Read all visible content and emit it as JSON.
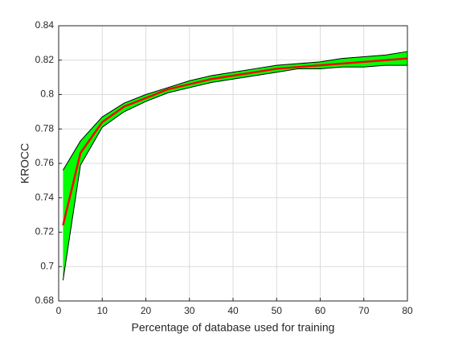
{
  "chart_data": {
    "type": "line",
    "x_label": "Percentage of database used for training",
    "y_label": "KROCC",
    "x": [
      1,
      5,
      10,
      15,
      20,
      25,
      30,
      35,
      40,
      45,
      50,
      55,
      60,
      65,
      70,
      75,
      80
    ],
    "series": [
      {
        "color": "#ff0000",
        "values": [
          0.724,
          0.766,
          0.784,
          0.793,
          0.798,
          0.803,
          0.806,
          0.809,
          0.811,
          0.813,
          0.815,
          0.816,
          0.817,
          0.818,
          0.819,
          0.82,
          0.821
        ],
        "upper": [
          0.756,
          0.773,
          0.787,
          0.795,
          0.8,
          0.804,
          0.808,
          0.811,
          0.813,
          0.815,
          0.817,
          0.818,
          0.819,
          0.821,
          0.822,
          0.823,
          0.825
        ],
        "lower": [
          0.692,
          0.759,
          0.781,
          0.79,
          0.796,
          0.801,
          0.804,
          0.807,
          0.809,
          0.811,
          0.813,
          0.815,
          0.815,
          0.816,
          0.816,
          0.817,
          0.817
        ],
        "band_color": "#00ff00",
        "band_edge_color": "#000000"
      }
    ],
    "xlim": [
      0,
      80
    ],
    "xticks": [
      0,
      10,
      20,
      30,
      40,
      50,
      60,
      70,
      80
    ],
    "ylim": [
      0.68,
      0.84
    ],
    "yticks": [
      0.68,
      0.7,
      0.72,
      0.74,
      0.76,
      0.78,
      0.8,
      0.82,
      0.84
    ],
    "grid": true
  }
}
